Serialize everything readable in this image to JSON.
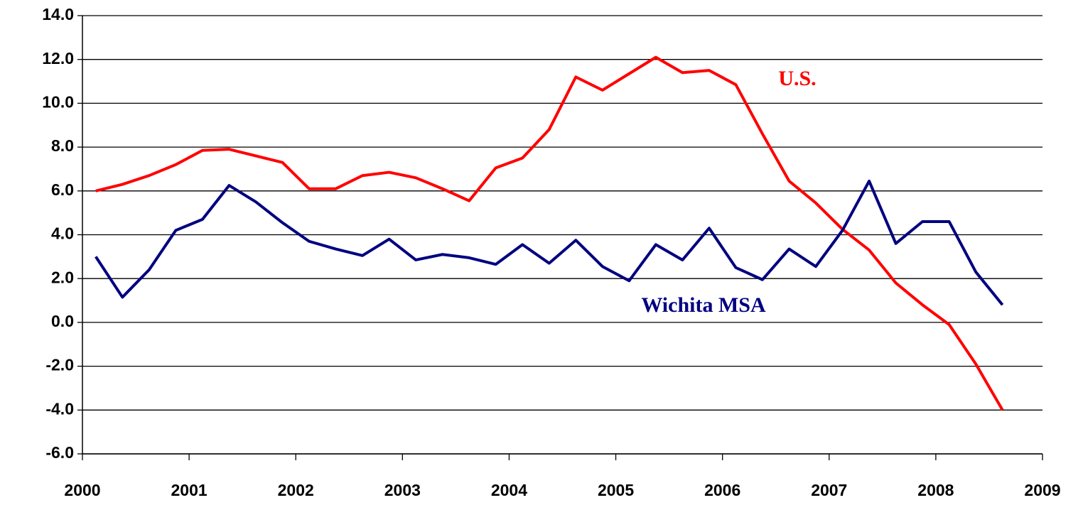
{
  "chart_data": {
    "type": "line",
    "x": [
      2000.125,
      2000.375,
      2000.625,
      2000.875,
      2001.125,
      2001.375,
      2001.625,
      2001.875,
      2002.125,
      2002.375,
      2002.625,
      2002.875,
      2003.125,
      2003.375,
      2003.625,
      2003.875,
      2004.125,
      2004.375,
      2004.625,
      2004.875,
      2005.125,
      2005.375,
      2005.625,
      2005.875,
      2006.125,
      2006.375,
      2006.625,
      2006.875,
      2007.125,
      2007.375,
      2007.625,
      2007.875,
      2008.125,
      2008.375,
      2008.625
    ],
    "series": [
      {
        "name": "U.S.",
        "color": "#ff0000",
        "values": [
          6.0,
          6.3,
          6.7,
          7.2,
          7.85,
          7.9,
          7.6,
          7.3,
          6.1,
          6.1,
          6.7,
          6.85,
          6.6,
          6.1,
          5.55,
          7.05,
          7.5,
          8.8,
          11.2,
          10.6,
          11.35,
          12.1,
          11.4,
          11.5,
          10.85,
          8.6,
          6.45,
          5.45,
          4.25,
          3.3,
          1.8,
          0.8,
          -0.1,
          -1.9,
          -4.0
        ]
      },
      {
        "name": "Wichita MSA",
        "color": "#000080",
        "values": [
          3.0,
          1.15,
          2.4,
          4.2,
          4.7,
          6.25,
          5.5,
          4.55,
          3.7,
          3.35,
          3.05,
          3.8,
          2.85,
          3.1,
          2.95,
          2.65,
          3.55,
          2.7,
          3.75,
          2.55,
          1.9,
          3.55,
          2.85,
          4.3,
          2.5,
          1.95,
          3.35,
          2.55,
          4.2,
          6.45,
          3.6,
          4.6,
          4.6,
          2.3,
          0.8
        ]
      }
    ],
    "xlim": [
      2000,
      2009
    ],
    "xticks": [
      2000,
      2001,
      2002,
      2003,
      2004,
      2005,
      2006,
      2007,
      2008,
      2009
    ],
    "ylim": [
      -6,
      14
    ],
    "yticks": [
      {
        "value": -6,
        "label": "-6.0"
      },
      {
        "value": -4,
        "label": "-4.0"
      },
      {
        "value": -2,
        "label": "-2.0"
      },
      {
        "value": 0,
        "label": "0.0"
      },
      {
        "value": 2,
        "label": "2.0"
      },
      {
        "value": 4,
        "label": "4.0"
      },
      {
        "value": 6,
        "label": "6.0"
      },
      {
        "value": 8,
        "label": "8.0"
      },
      {
        "value": 10,
        "label": "10.0"
      },
      {
        "value": 12,
        "label": "12.0"
      },
      {
        "value": 14,
        "label": "14.0"
      }
    ],
    "grid": true
  }
}
